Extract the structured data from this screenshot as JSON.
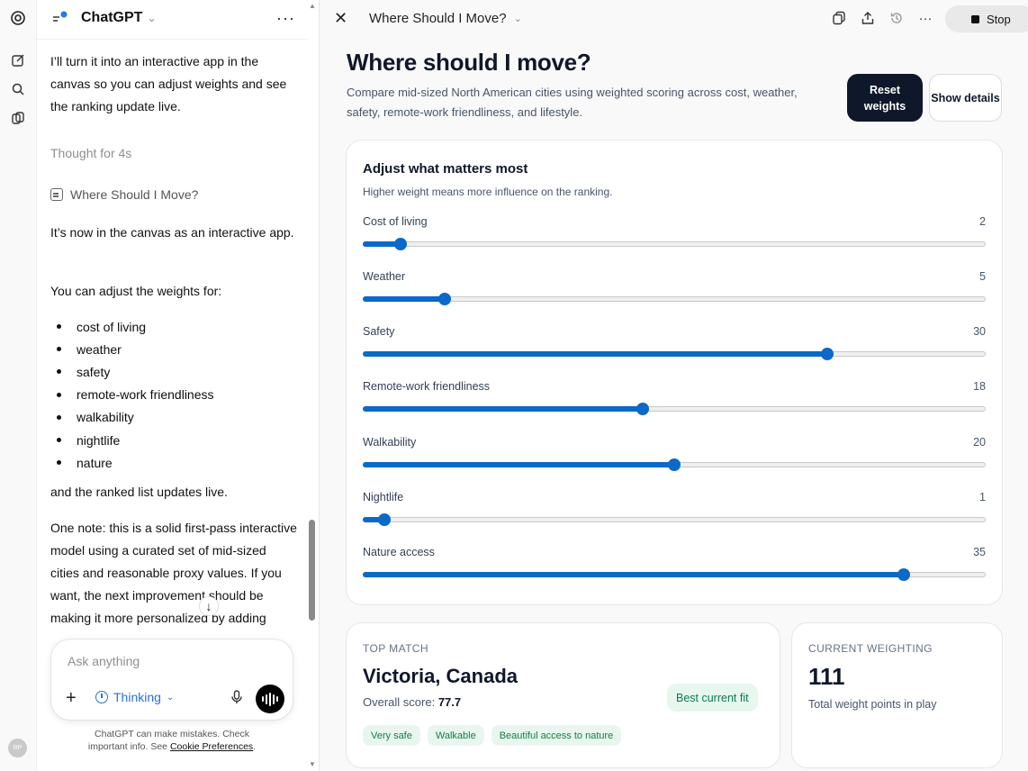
{
  "chat": {
    "title": "ChatGPT",
    "intro": "I’ll turn it into an interactive app in the canvas so you can adjust weights and see the ranking update live.",
    "thought": "Thought for 4s",
    "canvas_ref": "Where Should I Move?",
    "msg1": "It’s now in the canvas as an interactive app.",
    "msg2": "You can adjust the weights for:",
    "bullets": [
      "cost of living",
      "weather",
      "safety",
      "remote-work friendliness",
      "walkability",
      "nightlife",
      "nature"
    ],
    "msg3": "and the ranked list updates live.",
    "msg4": "One note: this is a solid first-pass interactive model using a curated set of mid-sized cities and reasonable proxy values. If you want, the next improvement should be making it more personalized by adding",
    "composer_placeholder": "Ask anything",
    "thinking_label": "Thinking",
    "disclaimer_text": "ChatGPT can make mistakes. Check important info. See ",
    "disclaimer_link": "Cookie Preferences",
    "disclaimer_end": ".",
    "avatar_initials": "RP"
  },
  "panel": {
    "doc_title": "Where Should I Move?",
    "stop_label": "Stop",
    "heading": "Where should I move?",
    "subheading": "Compare mid-sized North American cities using weighted scoring across cost, weather, safety, remote-work friendliness, and lifestyle.",
    "reset_label": "Reset weights",
    "show_label": "Show details",
    "weights_card": {
      "title": "Adjust what matters most",
      "subtitle": "Higher weight means more influence on the ranking.",
      "sliders": [
        {
          "label": "Cost of living",
          "value": 2,
          "fraction": 0.06
        },
        {
          "label": "Weather",
          "value": 5,
          "fraction": 0.132
        },
        {
          "label": "Safety",
          "value": 30,
          "fraction": 0.746
        },
        {
          "label": "Remote-work friendliness",
          "value": 18,
          "fraction": 0.45
        },
        {
          "label": "Walkability",
          "value": 20,
          "fraction": 0.5
        },
        {
          "label": "Nightlife",
          "value": 1,
          "fraction": 0.035
        },
        {
          "label": "Nature access",
          "value": 35,
          "fraction": 0.868
        }
      ]
    },
    "top_match": {
      "label": "TOP MATCH",
      "city": "Victoria, Canada",
      "score_label": "Overall score:",
      "score_value": "77.7",
      "badge": "Best current fit",
      "tags": [
        "Very safe",
        "Walkable",
        "Beautiful access to nature"
      ]
    },
    "current_weighting": {
      "label": "CURRENT WEIGHTING",
      "total": "111",
      "description": "Total weight points in play"
    }
  }
}
